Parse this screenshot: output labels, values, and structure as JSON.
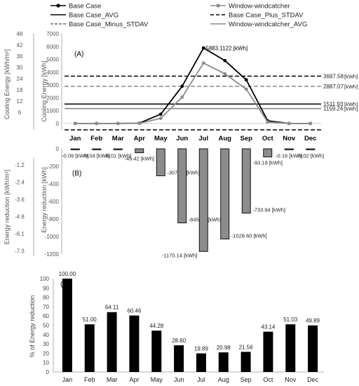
{
  "chart_data": [
    {
      "panel_label": "(A)",
      "type": "line",
      "categories": [
        "Jan",
        "Feb",
        "Mar",
        "Apr",
        "May",
        "Jun",
        "Jul",
        "Aug",
        "Sep",
        "Oct",
        "Nov",
        "Dec"
      ],
      "series": [
        {
          "name": "Base Case",
          "values": [
            0,
            0,
            0,
            20,
            720,
            2900,
            5883.1122,
            4900,
            3400,
            200,
            0,
            0
          ],
          "color": "#000000"
        },
        {
          "name": "Window-windcatcher",
          "values": [
            0,
            0,
            0,
            10,
            400,
            2050,
            4713,
            3870,
            2670,
            110,
            0,
            0
          ],
          "color": "#8c8c8c"
        }
      ],
      "reference_lines": [
        {
          "name": "Base Case_AVG",
          "value": 1511.93,
          "label": "1511.93",
          "color": "#000000",
          "style": "solid"
        },
        {
          "name": "Base Case_Plus_STDAV",
          "value": 3687.58,
          "label": "3687.58",
          "color": "#000000",
          "style": "dashed"
        },
        {
          "name": "Base Case_Minus_STDAV",
          "value": -500,
          "label": "",
          "color": "#000000",
          "style": "dashed"
        },
        {
          "name": "Window-windcatcher_AVG",
          "value": 1159.24,
          "label": "1159.24",
          "color": "#8c8c8c",
          "style": "solid"
        },
        {
          "name": "",
          "value": 2887.07,
          "label": "2887.07",
          "color": "#8c8c8c",
          "style": "dashed"
        }
      ],
      "peak_annotation": "5883.1122 [kWh]",
      "unit_label": "[kWh]",
      "ylabel": "Cooling Energy [kWh]",
      "ylabel_secondary": "Cooling Energy [kWh/m²]",
      "y_ticks": [
        0,
        1000,
        2000,
        3000,
        4000,
        5000,
        6000,
        7000
      ],
      "y_ticks_secondary": [
        "48",
        "42",
        "36",
        "30",
        "24",
        "18",
        "12",
        "6"
      ],
      "ylim": [
        -500,
        7000
      ],
      "grid": false,
      "legend_position": "top"
    },
    {
      "panel_label": "(B)",
      "type": "bar",
      "categories": [
        "Jan",
        "Feb",
        "Mar",
        "Apr",
        "May",
        "Jun",
        "Jul",
        "Aug",
        "Sep",
        "Oct",
        "Nov",
        "Dec"
      ],
      "values": [
        -0.09,
        -0.04,
        -8.01,
        -45.42,
        -307.56,
        -845.12,
        -1170.14,
        -1028.6,
        -733.94,
        -93.18,
        -0.16,
        -0.02
      ],
      "data_labels": [
        "-0.09 [kWh]",
        "-0.04 [kWh]",
        "-8.01 [kWh]",
        "-45.42 [kWh]",
        "-307.56 [kWh]",
        "-845.12 [kWh]",
        "-1170.14 [kWh]",
        "-1028.60 [kWh]",
        "-733.94 [kWh]",
        "-93.18 [kWh]",
        "-0.16 [kWh]",
        "-0.02 [kWh]"
      ],
      "bar_color": "#8c8c8c",
      "ylabel": "Energy reduction [kWh]",
      "ylabel_secondary": "Energy reduction [kWh/m²]",
      "y_ticks": [
        0,
        -200,
        -400,
        -600,
        -800,
        -1000,
        -1200
      ],
      "y_ticks_secondary": [
        "-1.2",
        "-2.4",
        "-3.6",
        "-4.8",
        "-6.1",
        "-7.3"
      ],
      "ylim": [
        -1200,
        0
      ],
      "grid": false
    },
    {
      "panel_label": "(C)",
      "type": "bar",
      "categories": [
        "Jan",
        "Feb",
        "Mar",
        "Apr",
        "May",
        "Jun",
        "Jul",
        "Aug",
        "Sep",
        "Oct",
        "Nov",
        "Dec"
      ],
      "values": [
        100.0,
        51.0,
        64.11,
        60.46,
        44.28,
        28.6,
        19.89,
        20.98,
        21.56,
        43.14,
        51.03,
        49.89
      ],
      "data_labels": [
        "100.00",
        "51.00",
        "64.11",
        "60.46",
        "44.28",
        "28.60",
        "19.89",
        "20.98",
        "21.56",
        "43.14",
        "51.03",
        "49.89"
      ],
      "bar_color": "#000000",
      "ylabel": "% of Energy reduction",
      "y_ticks": [
        0,
        10,
        20,
        30,
        40,
        50,
        60,
        70,
        80,
        90,
        100
      ],
      "ylim": [
        0,
        100
      ],
      "grid": false
    }
  ]
}
